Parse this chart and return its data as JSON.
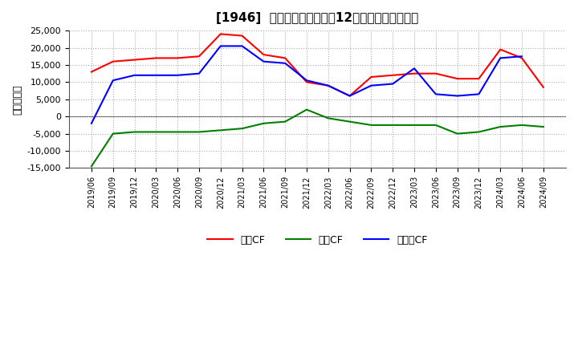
{
  "title_raw": "[1946]  キャッシュフローの12か月移動合計の推移",
  "ylabel": "（百万円）",
  "ylim": [
    -15000,
    25000
  ],
  "yticks": [
    -15000,
    -10000,
    -5000,
    0,
    5000,
    10000,
    15000,
    20000,
    25000
  ],
  "dates": [
    "2019/06",
    "2019/09",
    "2019/12",
    "2020/03",
    "2020/06",
    "2020/09",
    "2020/12",
    "2021/03",
    "2021/06",
    "2021/09",
    "2021/12",
    "2022/03",
    "2022/06",
    "2022/09",
    "2022/12",
    "2023/03",
    "2023/06",
    "2023/09",
    "2023/12",
    "2024/03",
    "2024/06",
    "2024/09"
  ],
  "eigyo_cf": [
    13000,
    16000,
    16500,
    17000,
    17000,
    17500,
    24000,
    23500,
    18000,
    17000,
    10000,
    9000,
    6000,
    11500,
    12000,
    12500,
    12500,
    11000,
    11000,
    19500,
    17000,
    8500
  ],
  "toshi_cf": [
    -14500,
    -5000,
    -4500,
    -4500,
    -4500,
    -4500,
    -4000,
    -3500,
    -2000,
    -1500,
    2000,
    -500,
    -1500,
    -2500,
    -2500,
    -2500,
    -2500,
    -5000,
    -4500,
    -3000,
    -2500,
    -3000
  ],
  "free_cf": [
    -2000,
    10500,
    12000,
    12000,
    12000,
    12500,
    20500,
    20500,
    16000,
    15500,
    10500,
    9000,
    6000,
    9000,
    9500,
    14000,
    6500,
    6000,
    6500,
    17000,
    17500,
    null
  ],
  "eigyo_color": "#ff0000",
  "toshi_color": "#008000",
  "free_color": "#0000ff",
  "legend_labels": [
    "営業CF",
    "投資CF",
    "フリーCF"
  ],
  "background_color": "#ffffff",
  "grid_color": "#aaaaaa",
  "grid_style": "dotted"
}
